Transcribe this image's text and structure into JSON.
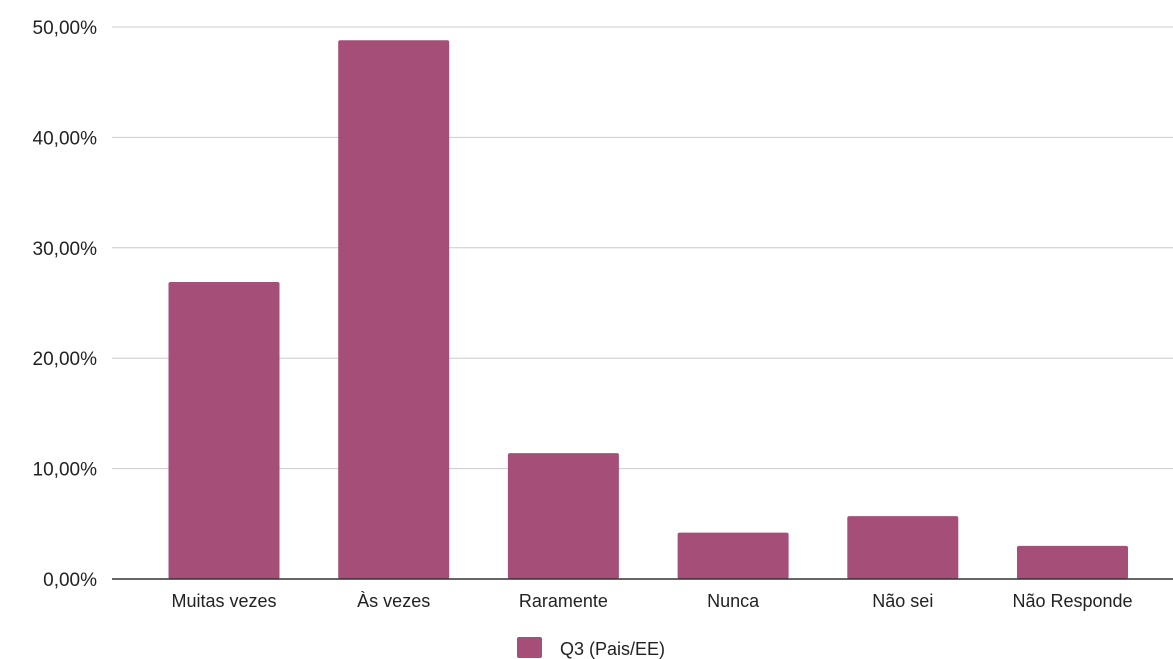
{
  "chart_data": {
    "type": "bar",
    "categories": [
      "Muitas vezes",
      "Às vezes",
      "Raramente",
      "Nunca",
      "Não sei",
      "Não Responde"
    ],
    "series": [
      {
        "name": "Q3 (Pais/EE)",
        "values": [
          26.9,
          48.8,
          11.4,
          4.2,
          5.7,
          3.0
        ],
        "color": "#a54e78"
      }
    ],
    "y_ticks": [
      "0,00%",
      "10,00%",
      "20,00%",
      "30,00%",
      "40,00%",
      "50,00%"
    ],
    "ylim": [
      0,
      50
    ],
    "grid": true,
    "legend_position": "bottom",
    "title": "",
    "xlabel": "",
    "ylabel": ""
  }
}
